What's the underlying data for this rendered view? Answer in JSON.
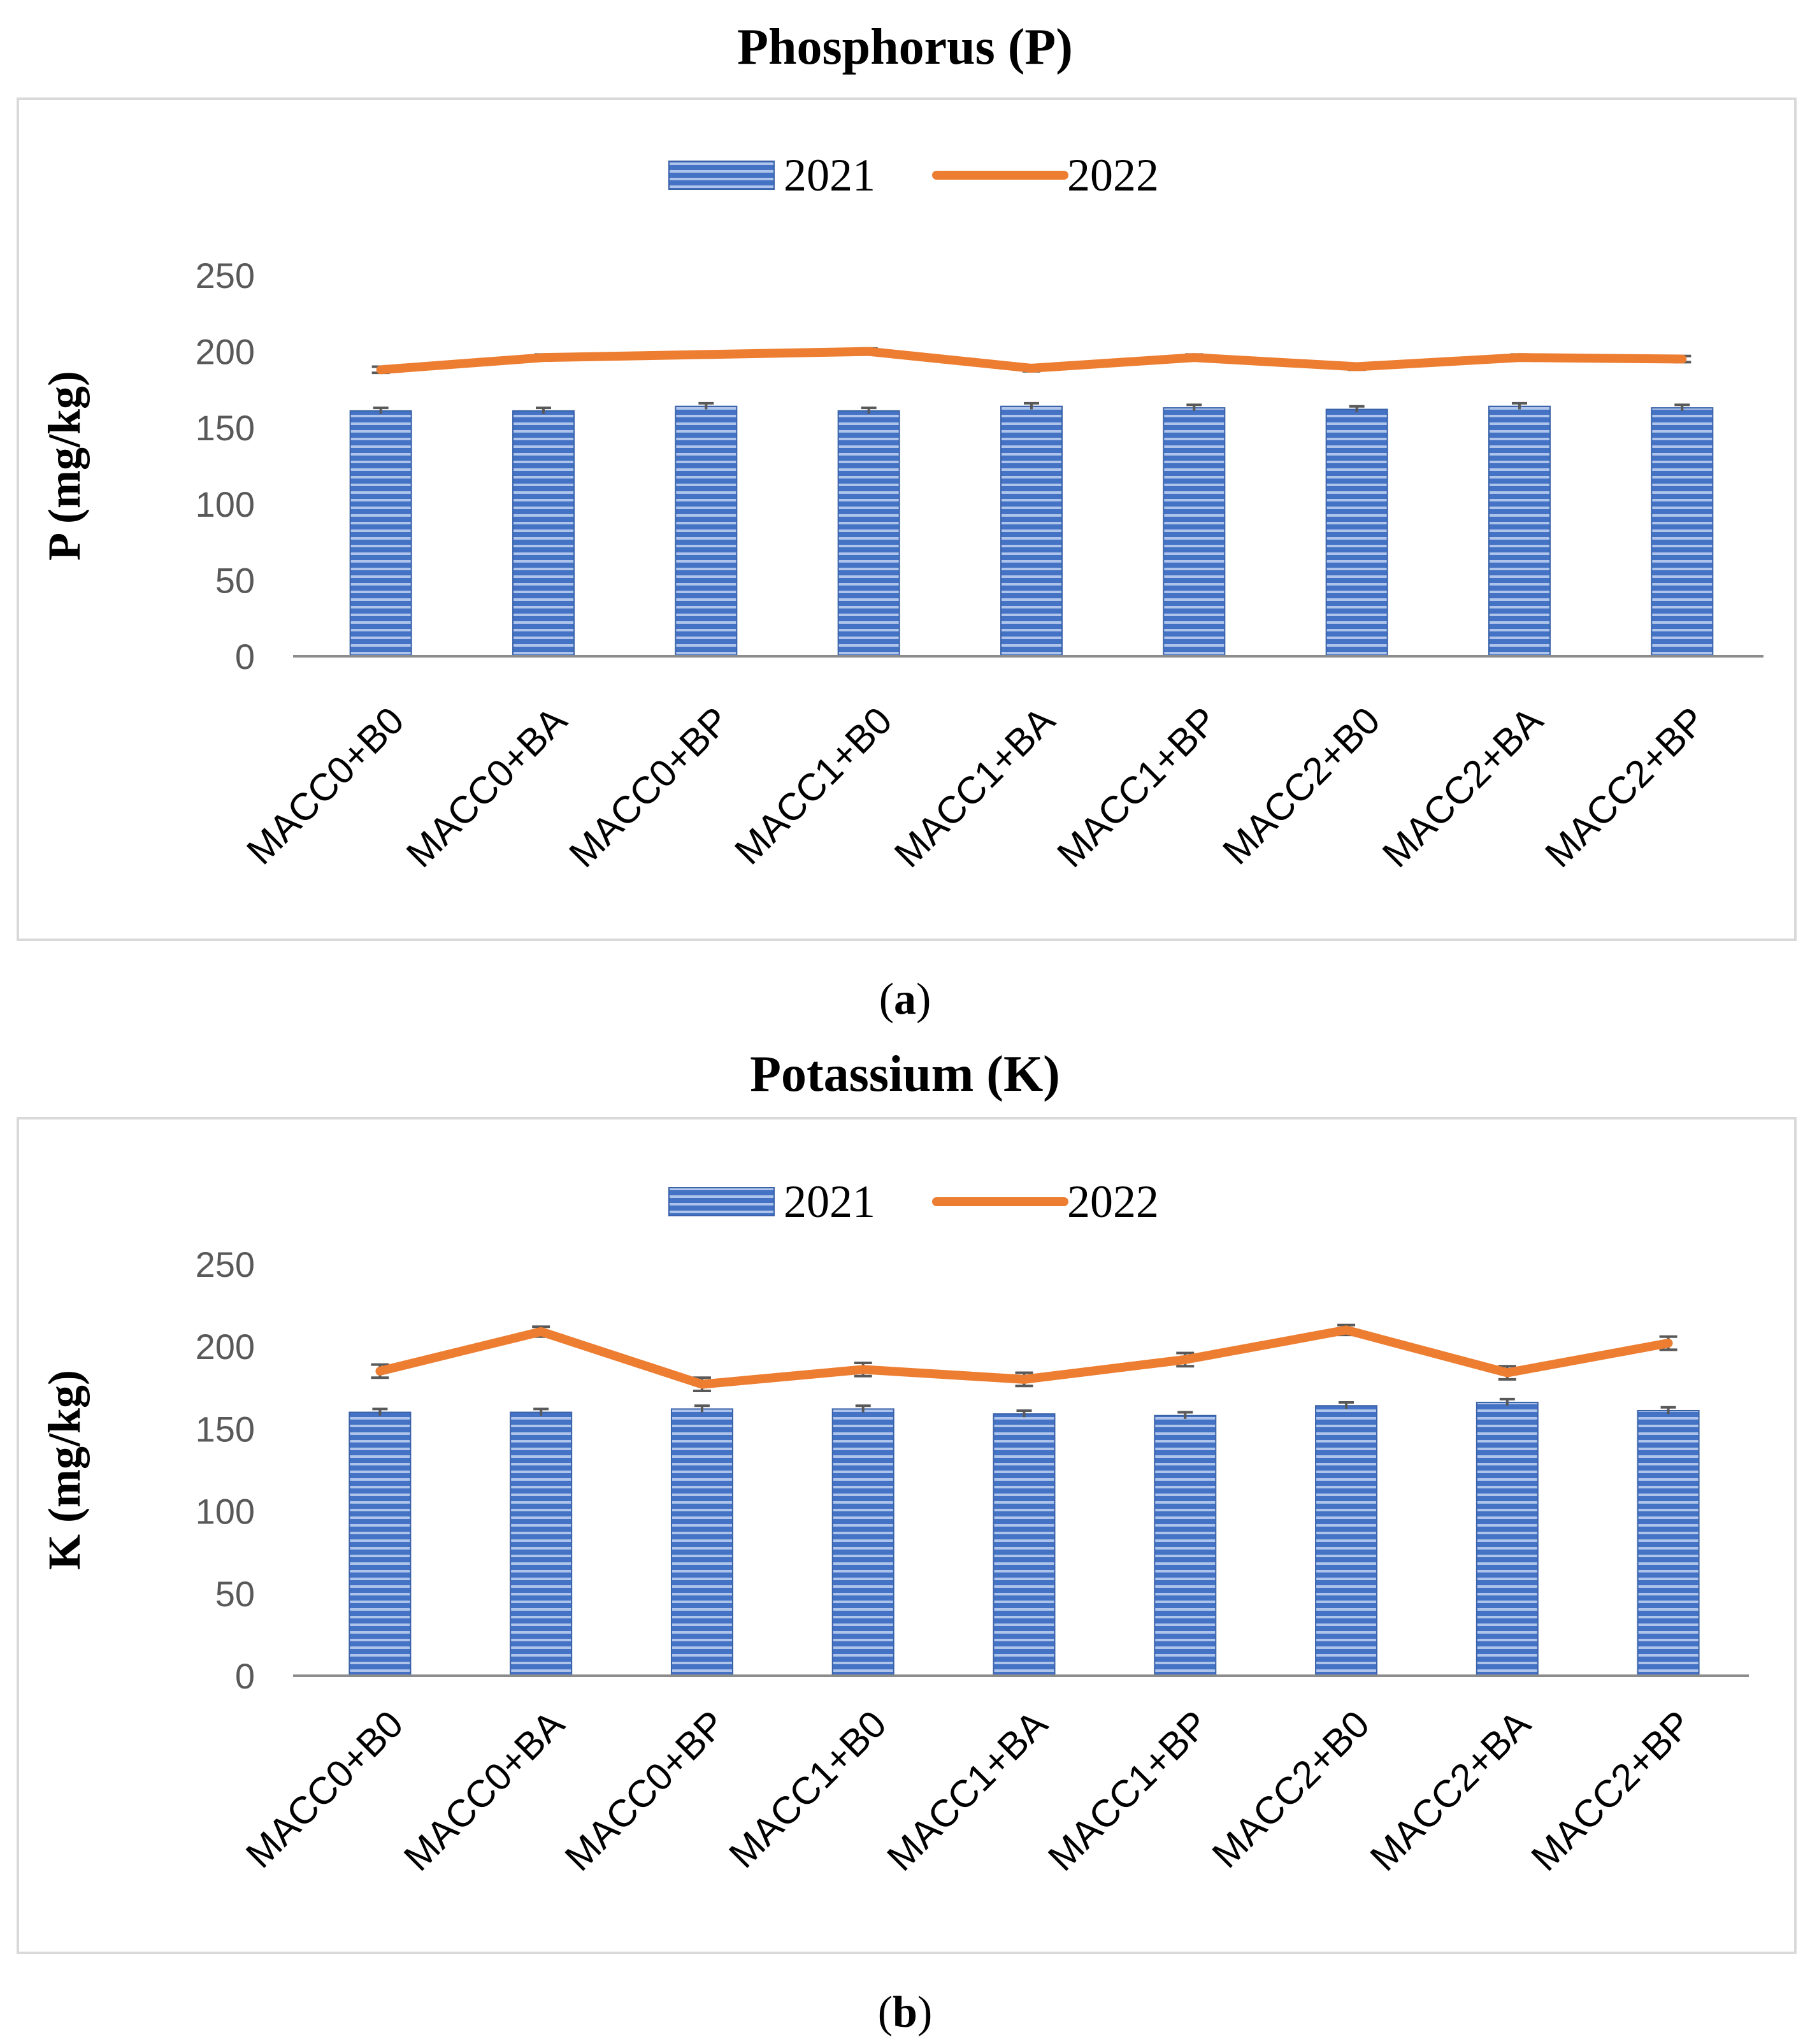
{
  "colors": {
    "bar_2021": "#4472C4",
    "line_2022": "#ED7D31",
    "axis": "#8C8C8C",
    "border": "#D9D9D9",
    "error_bar": "#595959"
  },
  "chart_data": [
    {
      "type": "bar",
      "panel_label": "a",
      "title": "Phosphorus (P)",
      "xlabel": "",
      "ylabel": "P (mg/kg)",
      "ylim": [
        0,
        250
      ],
      "yticks": [
        "0",
        "50",
        "100",
        "150",
        "200",
        "250"
      ],
      "categories": [
        "MACC0+B0",
        "MACC0+BA",
        "MACC0+BP",
        "MACC1+B0",
        "MACC1+BA",
        "MACC1+BP",
        "MACC2+B0",
        "MACC2+BA",
        "MACC2+BP"
      ],
      "series": [
        {
          "name": "2021",
          "kind": "bar",
          "values": [
            161,
            161,
            164,
            161,
            164,
            163,
            162,
            164,
            163
          ],
          "errors": [
            2,
            2,
            2,
            2,
            2,
            2,
            2,
            2,
            2
          ]
        },
        {
          "name": "2022",
          "kind": "line",
          "values": [
            188,
            196,
            198,
            200,
            189,
            196,
            190,
            196,
            195
          ],
          "errors": [
            2,
            2,
            2,
            2,
            2,
            2,
            2,
            2,
            2
          ]
        }
      ],
      "legend": "top-center"
    },
    {
      "type": "bar",
      "panel_label": "b",
      "title": "Potassium (K)",
      "xlabel": "",
      "ylabel": "K (mg/kg)",
      "ylim": [
        0,
        250
      ],
      "yticks": [
        "0",
        "50",
        "100",
        "150",
        "200",
        "250"
      ],
      "categories": [
        "MACC0+B0",
        "MACC0+BA",
        "MACC0+BP",
        "MACC1+B0",
        "MACC1+BA",
        "MACC1+BP",
        "MACC2+B0",
        "MACC2+BA",
        "MACC2+BP"
      ],
      "series": [
        {
          "name": "2021",
          "kind": "bar",
          "values": [
            160,
            160,
            162,
            162,
            159,
            158,
            164,
            166,
            161
          ],
          "errors": [
            2,
            2,
            2,
            2,
            2,
            2,
            2,
            2,
            2
          ]
        },
        {
          "name": "2022",
          "kind": "line",
          "values": [
            185,
            209,
            177,
            186,
            180,
            192,
            210,
            184,
            202
          ],
          "errors": [
            4,
            3,
            4,
            4,
            4,
            4,
            3,
            4,
            4
          ]
        }
      ],
      "legend": "top-center"
    }
  ]
}
